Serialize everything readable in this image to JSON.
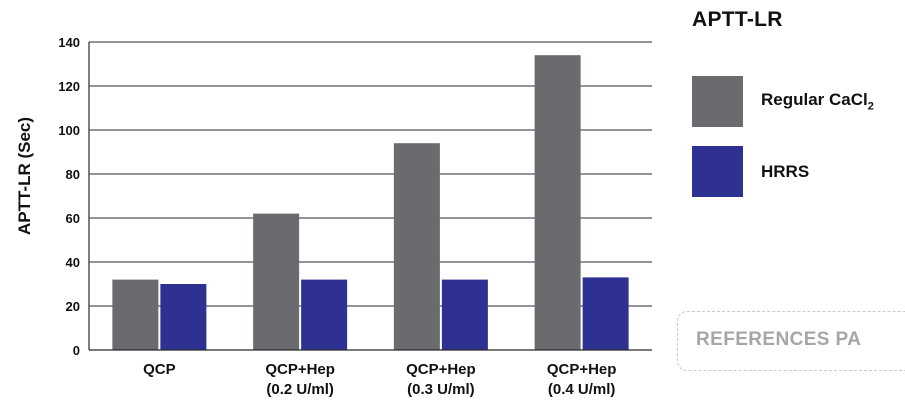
{
  "chart_data": {
    "type": "bar",
    "ylabel": "APTT-LR (Sec)",
    "ylim": [
      0,
      140
    ],
    "yticks": [
      0,
      20,
      40,
      60,
      80,
      100,
      120,
      140
    ],
    "grid": true,
    "categories": [
      [
        "QCP"
      ],
      [
        "QCP+Hep",
        "(0.2 U/ml)"
      ],
      [
        "QCP+Hep",
        "(0.3 U/ml)"
      ],
      [
        "QCP+Hep",
        "(0.4 U/ml)"
      ]
    ],
    "series": [
      {
        "name": "Regular CaCl2",
        "color": "#6a6b6e",
        "values": [
          32,
          62,
          94,
          134
        ]
      },
      {
        "name": "HRRS",
        "color": "#2e3192",
        "values": [
          30,
          32,
          32,
          33
        ]
      }
    ],
    "legend_placement": "right"
  },
  "legend": {
    "title": "APTT-LR",
    "items": [
      {
        "label_main": "Regular CaCl",
        "label_sub": "2",
        "color": "#6a6b6e"
      },
      {
        "label_main": "HRRS",
        "label_sub": "",
        "color": "#2e3192"
      }
    ]
  },
  "references_button": {
    "label": "REFERENCES PA"
  }
}
